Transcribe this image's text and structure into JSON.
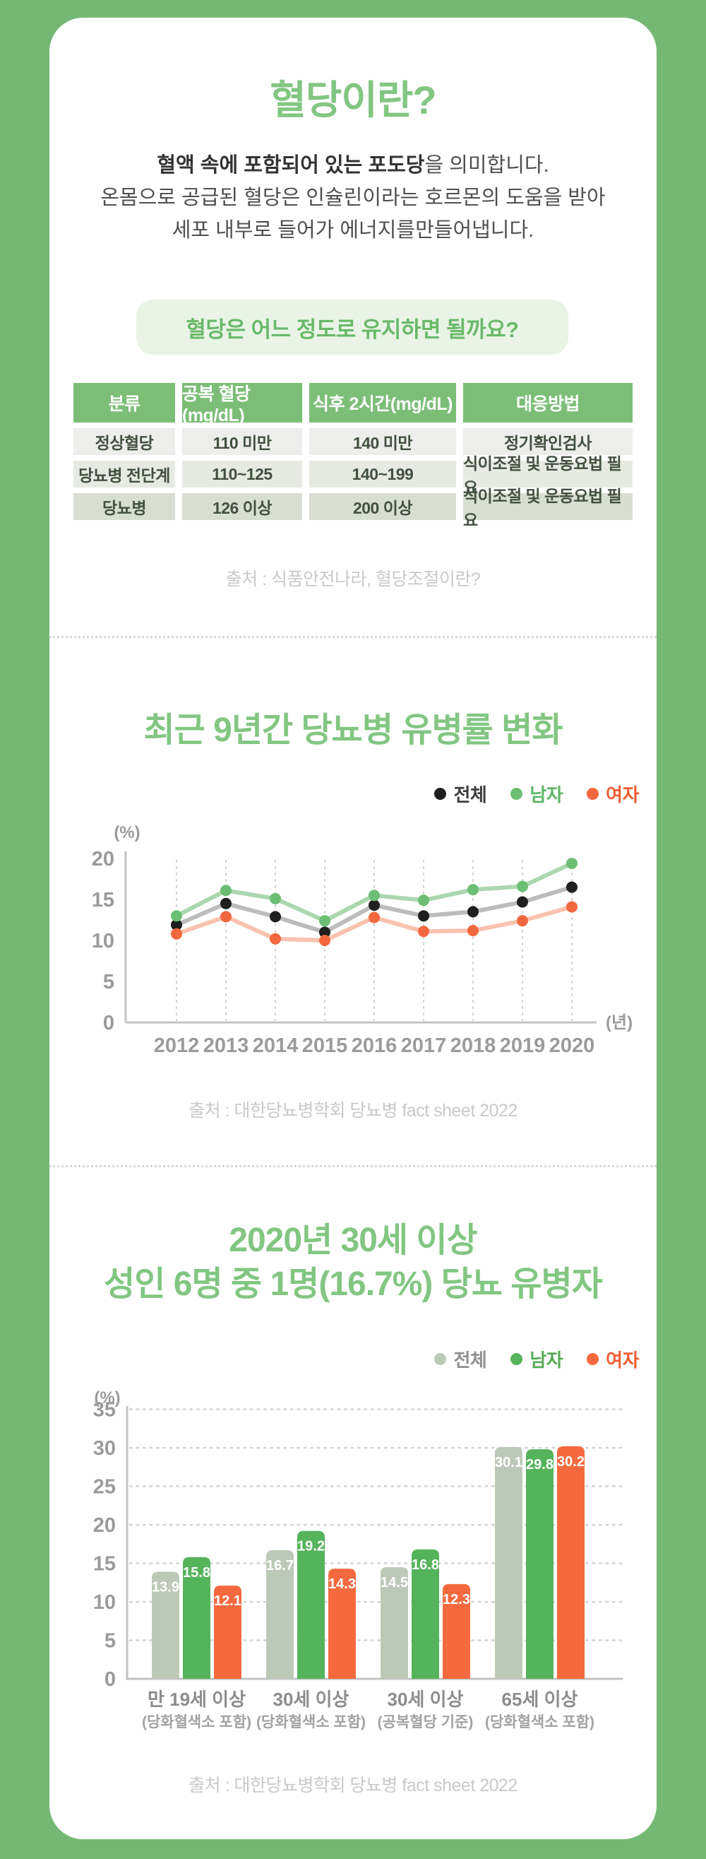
{
  "colors": {
    "page_bg": "#75b875",
    "card_bg": "#ffffff",
    "title_green": "#82c682",
    "badge_bg": "#e9f4e6",
    "badge_text": "#69b969",
    "table_header_bg": "#7cbe77",
    "table_row_bgs": [
      "#edeeec",
      "#e7eae3",
      "#d9ded3"
    ],
    "source_gray": "#c9c9c9",
    "axis_text": "#9b9b9b",
    "axis_line": "#c3c3c3"
  },
  "intro": {
    "title": "혈당이란?",
    "line1_bold": "혈액 속에 포함되어 있는 포도당",
    "line1_rest": "을 의미합니다.",
    "line2": "온몸으로 공급된 혈당은 인슐린이라는 호르몬의 도움을 받아",
    "line3": "세포 내부로 들어가 에너지를만들어냅니다.",
    "question": "혈당은 어느 정도로 유지하면 될까요?"
  },
  "table": {
    "headers": [
      "분류",
      "공복 혈당(mg/dL)",
      "식후 2시간(mg/dL)",
      "대응방법"
    ],
    "rows": [
      [
        "정상혈당",
        "110 미만",
        "140 미만",
        "정기확인검사"
      ],
      [
        "당뇨병 전단계",
        "110~125",
        "140~199",
        "식이조절 및 운동요법 필요"
      ],
      [
        "당뇨병",
        "126 이상",
        "200 이상",
        "식이조절 및 운동요법 필요"
      ]
    ],
    "source": "출처 : 식품안전나라, 혈당조절이란?"
  },
  "trend_section": {
    "title": "최근 9년간 당뇨병 유병률 변화",
    "source": "출처 : 대한당뇨병학회 당뇨병 fact sheet 2022"
  },
  "prevalence_section": {
    "title_line1": "2020년 30세 이상",
    "title_line2": "성인 6명 중 1명(16.7%) 당뇨 유병자",
    "source": "출처 : 대한당뇨병학회 당뇨병 fact sheet 2022"
  },
  "legends": {
    "trend": [
      {
        "label": "전체",
        "dot": "#1f1f1f",
        "text": "#3d3d3d"
      },
      {
        "label": "남자",
        "dot": "#6cbe74",
        "text": "#5fb566"
      },
      {
        "label": "여자",
        "dot": "#f2683e",
        "text": "#ee5c32"
      }
    ],
    "prevalence": [
      {
        "label": "전체",
        "dot": "#bdc9b7",
        "text": "#8f8f8f"
      },
      {
        "label": "남자",
        "dot": "#55b35c",
        "text": "#55ab55"
      },
      {
        "label": "여자",
        "dot": "#f46a3e",
        "text": "#f05c31"
      }
    ]
  },
  "chart_data": [
    {
      "type": "line",
      "title": "최근 9년간 당뇨병 유병률 변화",
      "x": [
        2012,
        2013,
        2014,
        2015,
        2016,
        2017,
        2018,
        2019,
        2020
      ],
      "xlabel": "(년)",
      "ylabel": "(%)",
      "ylim": [
        0,
        20
      ],
      "yticks": [
        0,
        5,
        10,
        15,
        20
      ],
      "grid": "vertical-dotted",
      "legend_position": "top-right",
      "series": [
        {
          "name": "전체",
          "values": [
            11.9,
            14.5,
            12.9,
            11.0,
            14.3,
            13.0,
            13.5,
            14.7,
            16.5
          ],
          "line_color": "#bcbcbc",
          "dot_color": "#1f1f1f"
        },
        {
          "name": "남자",
          "values": [
            13.0,
            16.1,
            15.1,
            12.4,
            15.5,
            14.9,
            16.2,
            16.6,
            19.4
          ],
          "line_color": "#abd7ae",
          "dot_color": "#6cbe74"
        },
        {
          "name": "여자",
          "values": [
            10.8,
            12.9,
            10.2,
            10.0,
            12.8,
            11.1,
            11.2,
            12.4,
            14.1
          ],
          "line_color": "#f9c2ae",
          "dot_color": "#f2683e"
        }
      ]
    },
    {
      "type": "bar",
      "title": "2020년 30세 이상 성인 6명 중 1명(16.7%) 당뇨 유병자",
      "categories": [
        {
          "label": "만 19세 이상",
          "sub": "(당화혈색소 포함)"
        },
        {
          "label": "30세 이상",
          "sub": "(당화혈색소 포함)"
        },
        {
          "label": "30세 이상",
          "sub": "(공복혈당 기준)"
        },
        {
          "label": "65세 이상",
          "sub": "(당화혈색소 포함)"
        }
      ],
      "ylabel": "(%)",
      "ylim": [
        0,
        35
      ],
      "yticks": [
        0,
        5,
        10,
        15,
        20,
        25,
        30,
        35
      ],
      "grid": "horizontal-dotted",
      "legend_position": "top-right",
      "series": [
        {
          "name": "전체",
          "color": "#bdc9b7",
          "values": [
            13.9,
            16.7,
            14.5,
            30.1
          ]
        },
        {
          "name": "남자",
          "color": "#55b35c",
          "values": [
            15.8,
            19.2,
            16.8,
            29.8
          ]
        },
        {
          "name": "여자",
          "color": "#f46a3e",
          "values": [
            12.1,
            14.3,
            12.3,
            30.2
          ]
        }
      ]
    }
  ]
}
